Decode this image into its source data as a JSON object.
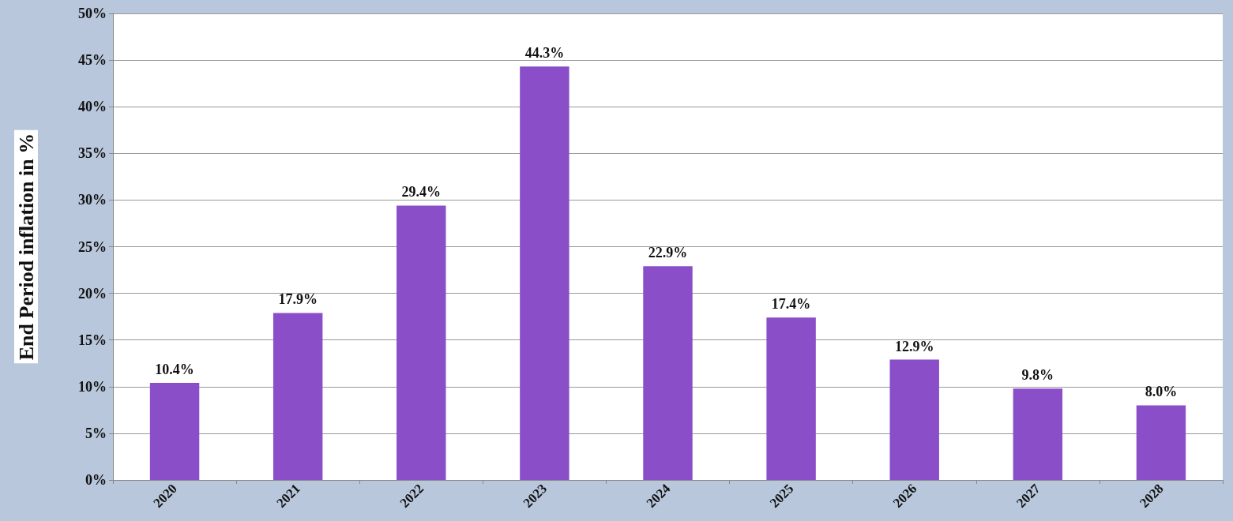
{
  "chart_data": {
    "type": "bar",
    "ylabel": "End Period inflation in %",
    "categories": [
      "2020",
      "2021",
      "2022",
      "2023",
      "2024",
      "2025",
      "2026",
      "2027",
      "2028"
    ],
    "values": [
      10.4,
      17.9,
      29.4,
      44.3,
      22.9,
      17.4,
      12.9,
      9.8,
      8.0
    ],
    "value_labels": [
      "10.4%",
      "17.9%",
      "29.4%",
      "44.3%",
      "22.9%",
      "17.4%",
      "12.9%",
      "9.8%",
      "8.0%"
    ],
    "color": "#8a4fc8",
    "ylim": [
      0,
      50
    ],
    "yticks": [
      {
        "value": 0,
        "label": "0%"
      },
      {
        "value": 5,
        "label": "5%"
      },
      {
        "value": 10,
        "label": "10%"
      },
      {
        "value": 15,
        "label": "15%"
      },
      {
        "value": 20,
        "label": "20%"
      },
      {
        "value": 25,
        "label": "25%"
      },
      {
        "value": 30,
        "label": "30%"
      },
      {
        "value": 35,
        "label": "35%"
      },
      {
        "value": 40,
        "label": "40%"
      },
      {
        "value": 45,
        "label": "45%"
      },
      {
        "value": 50,
        "label": "50%"
      }
    ],
    "grid": "y"
  }
}
